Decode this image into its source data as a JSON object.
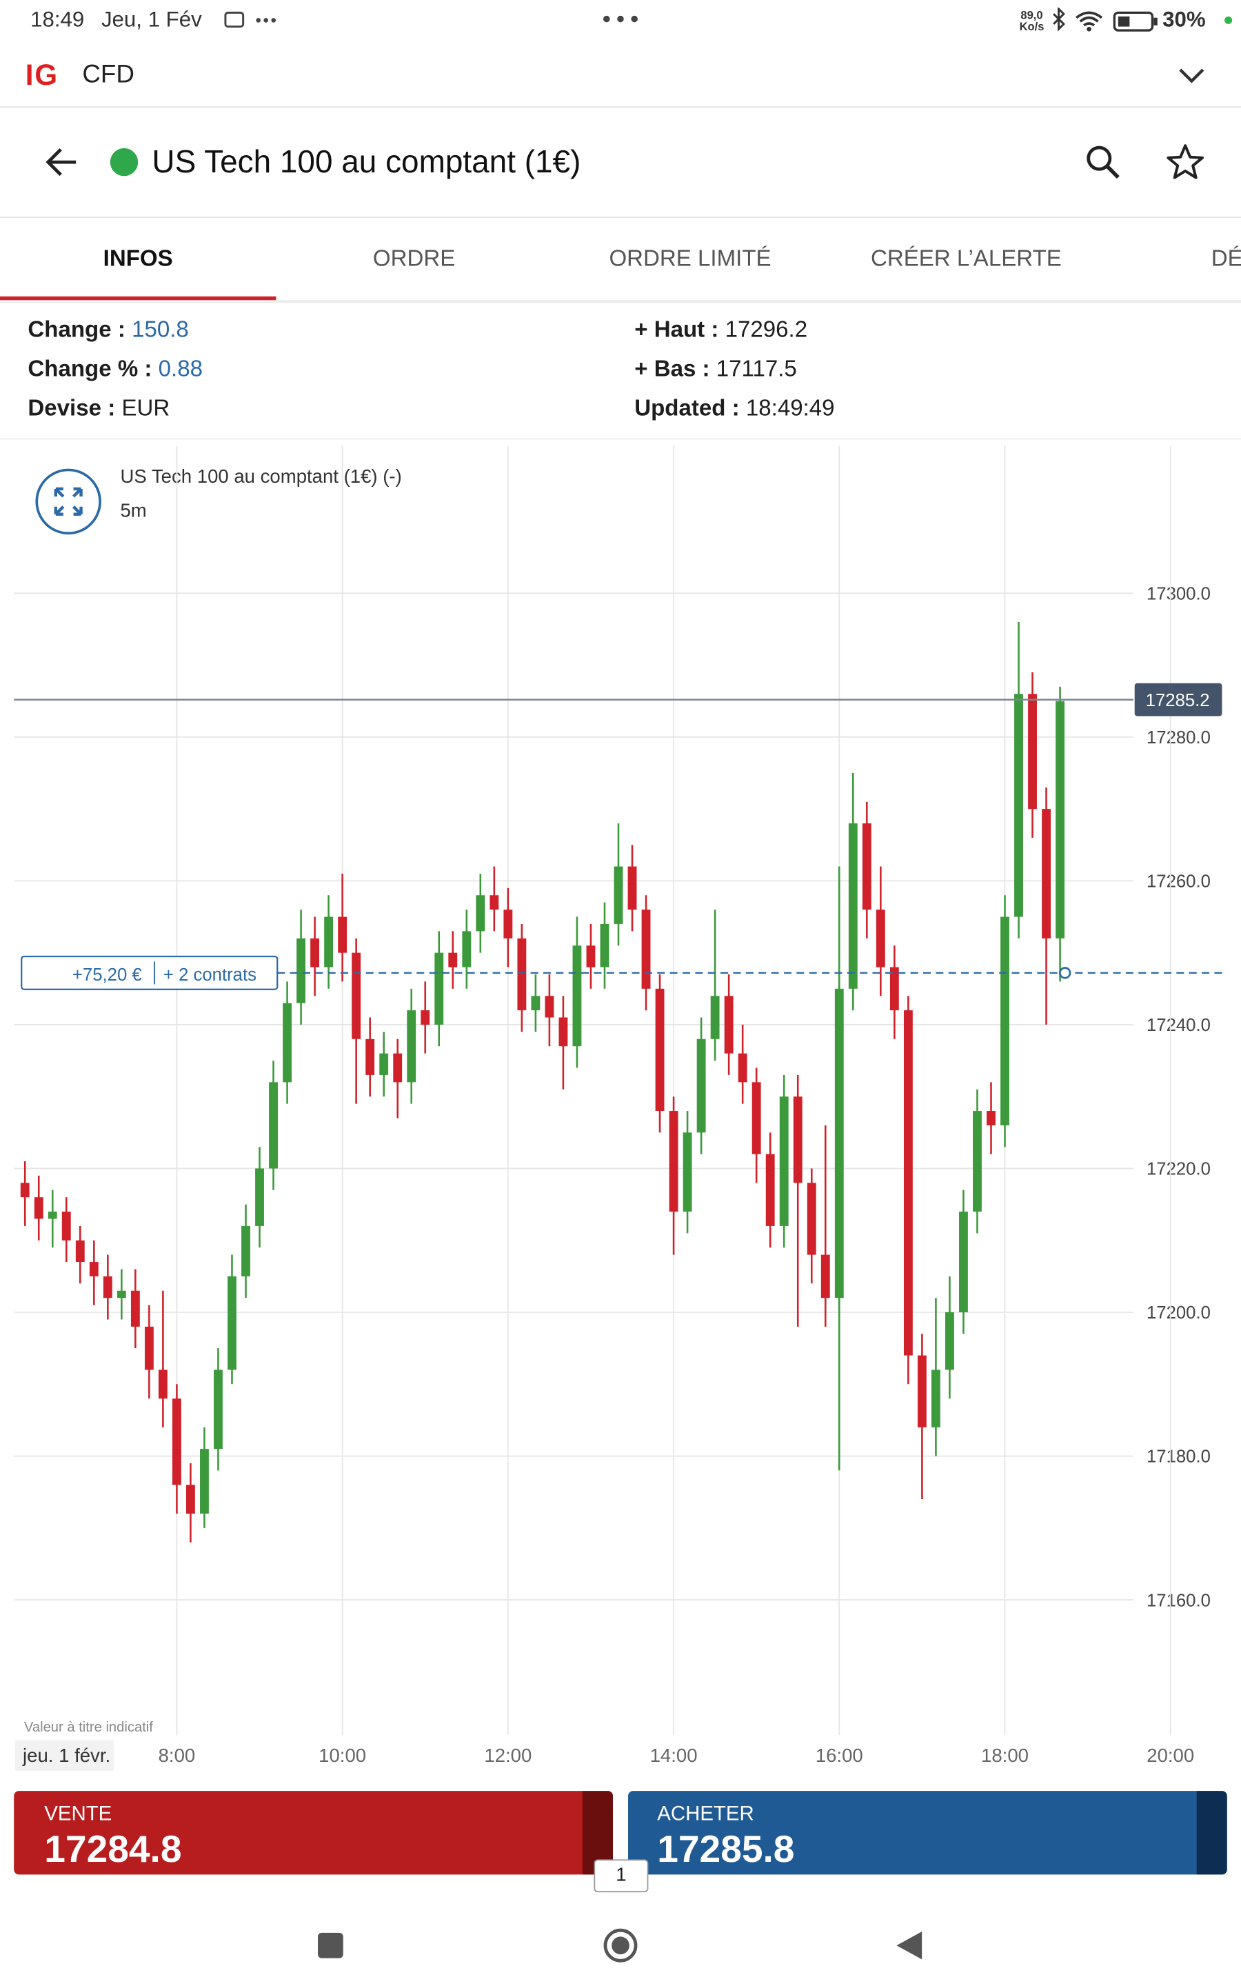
{
  "status_bar": {
    "time": "18:49",
    "date": "Jeu, 1 Fév",
    "speed": "89,0",
    "speed_unit": "Ko/s",
    "battery": "30%"
  },
  "app_bar": {
    "logo": "IG",
    "label": "CFD"
  },
  "header": {
    "title": "US Tech 100 au comptant (1€)"
  },
  "tabs": [
    "INFOS",
    "ORDRE",
    "ORDRE LIMITÉ",
    "CRÉER L’ALERTE",
    "DÉPÊ"
  ],
  "info": {
    "left": [
      {
        "label": "Change :",
        "value": "150.8"
      },
      {
        "label": "Change % :",
        "value": "0.88"
      },
      {
        "label": "Devise :",
        "value": "EUR"
      }
    ],
    "right": [
      {
        "label": "+ Haut :",
        "value": "17296.2"
      },
      {
        "label": "+ Bas :",
        "value": "17117.5"
      },
      {
        "label": "Updated :",
        "value": "18:49:49"
      }
    ]
  },
  "chart_data": {
    "type": "candlestick",
    "title": "US Tech 100 au comptant (1€) (-)",
    "interval": "5m",
    "note": "Valeur à titre indicatif",
    "date_label": "jeu. 1 févr.",
    "up_color": "#3c9a3c",
    "down_color": "#d0212a",
    "grid": true,
    "xlim": [
      362,
      1241
    ],
    "xticks": [
      {
        "value": 480,
        "label": "8:00"
      },
      {
        "value": 600,
        "label": "10:00"
      },
      {
        "value": 720,
        "label": "12:00"
      },
      {
        "value": 840,
        "label": "14:00"
      },
      {
        "value": 960,
        "label": "16:00"
      },
      {
        "value": 1080,
        "label": "18:00"
      },
      {
        "value": 1200,
        "label": "20:00"
      }
    ],
    "ylim": [
      17144,
      17305
    ],
    "yticks": [
      {
        "value": 17160,
        "label": "17160.0"
      },
      {
        "value": 17180,
        "label": "17180.0"
      },
      {
        "value": 17200,
        "label": "17200.0"
      },
      {
        "value": 17220,
        "label": "17220.0"
      },
      {
        "value": 17240,
        "label": "17240.0"
      },
      {
        "value": 17260,
        "label": "17260.0"
      },
      {
        "value": 17280,
        "label": "17280.0"
      },
      {
        "value": 17300,
        "label": "17300.0"
      }
    ],
    "current_price": 17285.2,
    "position": {
      "value": 17247.2,
      "pnl": "+75,20 €",
      "size": "+ 2 contrats"
    },
    "x": [
      370,
      380,
      390,
      400,
      410,
      420,
      430,
      440,
      450,
      460,
      470,
      480,
      490,
      500,
      510,
      520,
      530,
      540,
      550,
      560,
      570,
      580,
      590,
      600,
      610,
      620,
      630,
      640,
      650,
      660,
      670,
      680,
      690,
      700,
      710,
      720,
      730,
      740,
      750,
      760,
      770,
      780,
      790,
      800,
      810,
      820,
      830,
      840,
      850,
      860,
      870,
      880,
      890,
      900,
      910,
      920,
      930,
      940,
      950,
      960,
      970,
      980,
      990,
      1000,
      1010,
      1020,
      1030,
      1040,
      1050,
      1060,
      1070,
      1080,
      1090,
      1100,
      1110,
      1120
    ],
    "open": [
      17218,
      17216,
      17213,
      17214,
      17210,
      17207,
      17205,
      17202,
      17203,
      17198,
      17192,
      17188,
      17176,
      17172,
      17181,
      17192,
      17205,
      17212,
      17220,
      17232,
      17243,
      17252,
      17248,
      17255,
      17250,
      17238,
      17233,
      17236,
      17232,
      17242,
      17240,
      17250,
      17248,
      17253,
      17258,
      17256,
      17252,
      17242,
      17244,
      17241,
      17237,
      17251,
      17248,
      17254,
      17262,
      17256,
      17245,
      17228,
      17214,
      17225,
      17238,
      17244,
      17236,
      17232,
      17222,
      17212,
      17230,
      17218,
      17208,
      17202,
      17245,
      17268,
      17256,
      17248,
      17242,
      17194,
      17184,
      17192,
      17200,
      17214,
      17228,
      17226,
      17255,
      17286,
      17270,
      17252
    ],
    "high": [
      17221,
      17219,
      17217,
      17216,
      17212,
      17210,
      17208,
      17206,
      17206,
      17201,
      17203,
      17190,
      17179,
      17184,
      17195,
      17208,
      17215,
      17223,
      17235,
      17246,
      17256,
      17255,
      17258,
      17261,
      17252,
      17241,
      17239,
      17238,
      17245,
      17246,
      17253,
      17253,
      17256,
      17261,
      17262,
      17259,
      17254,
      17247,
      17247,
      17244,
      17255,
      17254,
      17257,
      17268,
      17265,
      17258,
      17247,
      17230,
      17228,
      17241,
      17256,
      17247,
      17240,
      17234,
      17225,
      17233,
      17233,
      17220,
      17226,
      17262,
      17275,
      17271,
      17262,
      17251,
      17244,
      17197,
      17202,
      17205,
      17217,
      17231,
      17232,
      17258,
      17296,
      17289,
      17273,
      17287
    ],
    "low": [
      17212,
      17210,
      17209,
      17207,
      17204,
      17201,
      17199,
      17199,
      17195,
      17188,
      17184,
      17172,
      17168,
      17170,
      17178,
      17190,
      17202,
      17209,
      17217,
      17229,
      17240,
      17244,
      17245,
      17246,
      17229,
      17230,
      17230,
      17227,
      17229,
      17236,
      17237,
      17245,
      17245,
      17250,
      17253,
      17248,
      17239,
      17239,
      17237,
      17231,
      17234,
      17245,
      17245,
      17251,
      17253,
      17242,
      17225,
      17208,
      17211,
      17222,
      17235,
      17233,
      17229,
      17218,
      17209,
      17209,
      17198,
      17204,
      17198,
      17178,
      17242,
      17252,
      17244,
      17238,
      17190,
      17174,
      17180,
      17188,
      17197,
      17211,
      17222,
      17223,
      17252,
      17266,
      17240,
      17246
    ],
    "close": [
      17216,
      17213,
      17214,
      17210,
      17207,
      17205,
      17202,
      17203,
      17198,
      17192,
      17188,
      17176,
      17172,
      17181,
      17192,
      17205,
      17212,
      17220,
      17232,
      17243,
      17252,
      17248,
      17255,
      17250,
      17238,
      17233,
      17236,
      17232,
      17242,
      17240,
      17250,
      17248,
      17253,
      17258,
      17256,
      17252,
      17242,
      17244,
      17241,
      17237,
      17251,
      17248,
      17254,
      17262,
      17256,
      17245,
      17228,
      17214,
      17225,
      17238,
      17244,
      17236,
      17232,
      17222,
      17212,
      17230,
      17218,
      17208,
      17202,
      17245,
      17268,
      17256,
      17248,
      17242,
      17194,
      17184,
      17192,
      17200,
      17214,
      17228,
      17226,
      17255,
      17286,
      17270,
      17252,
      17285
    ]
  },
  "trade": {
    "sell_label": "VENTE",
    "sell_price": "17284.8",
    "buy_label": "ACHETER",
    "buy_price": "17285.8",
    "quantity": "1"
  }
}
